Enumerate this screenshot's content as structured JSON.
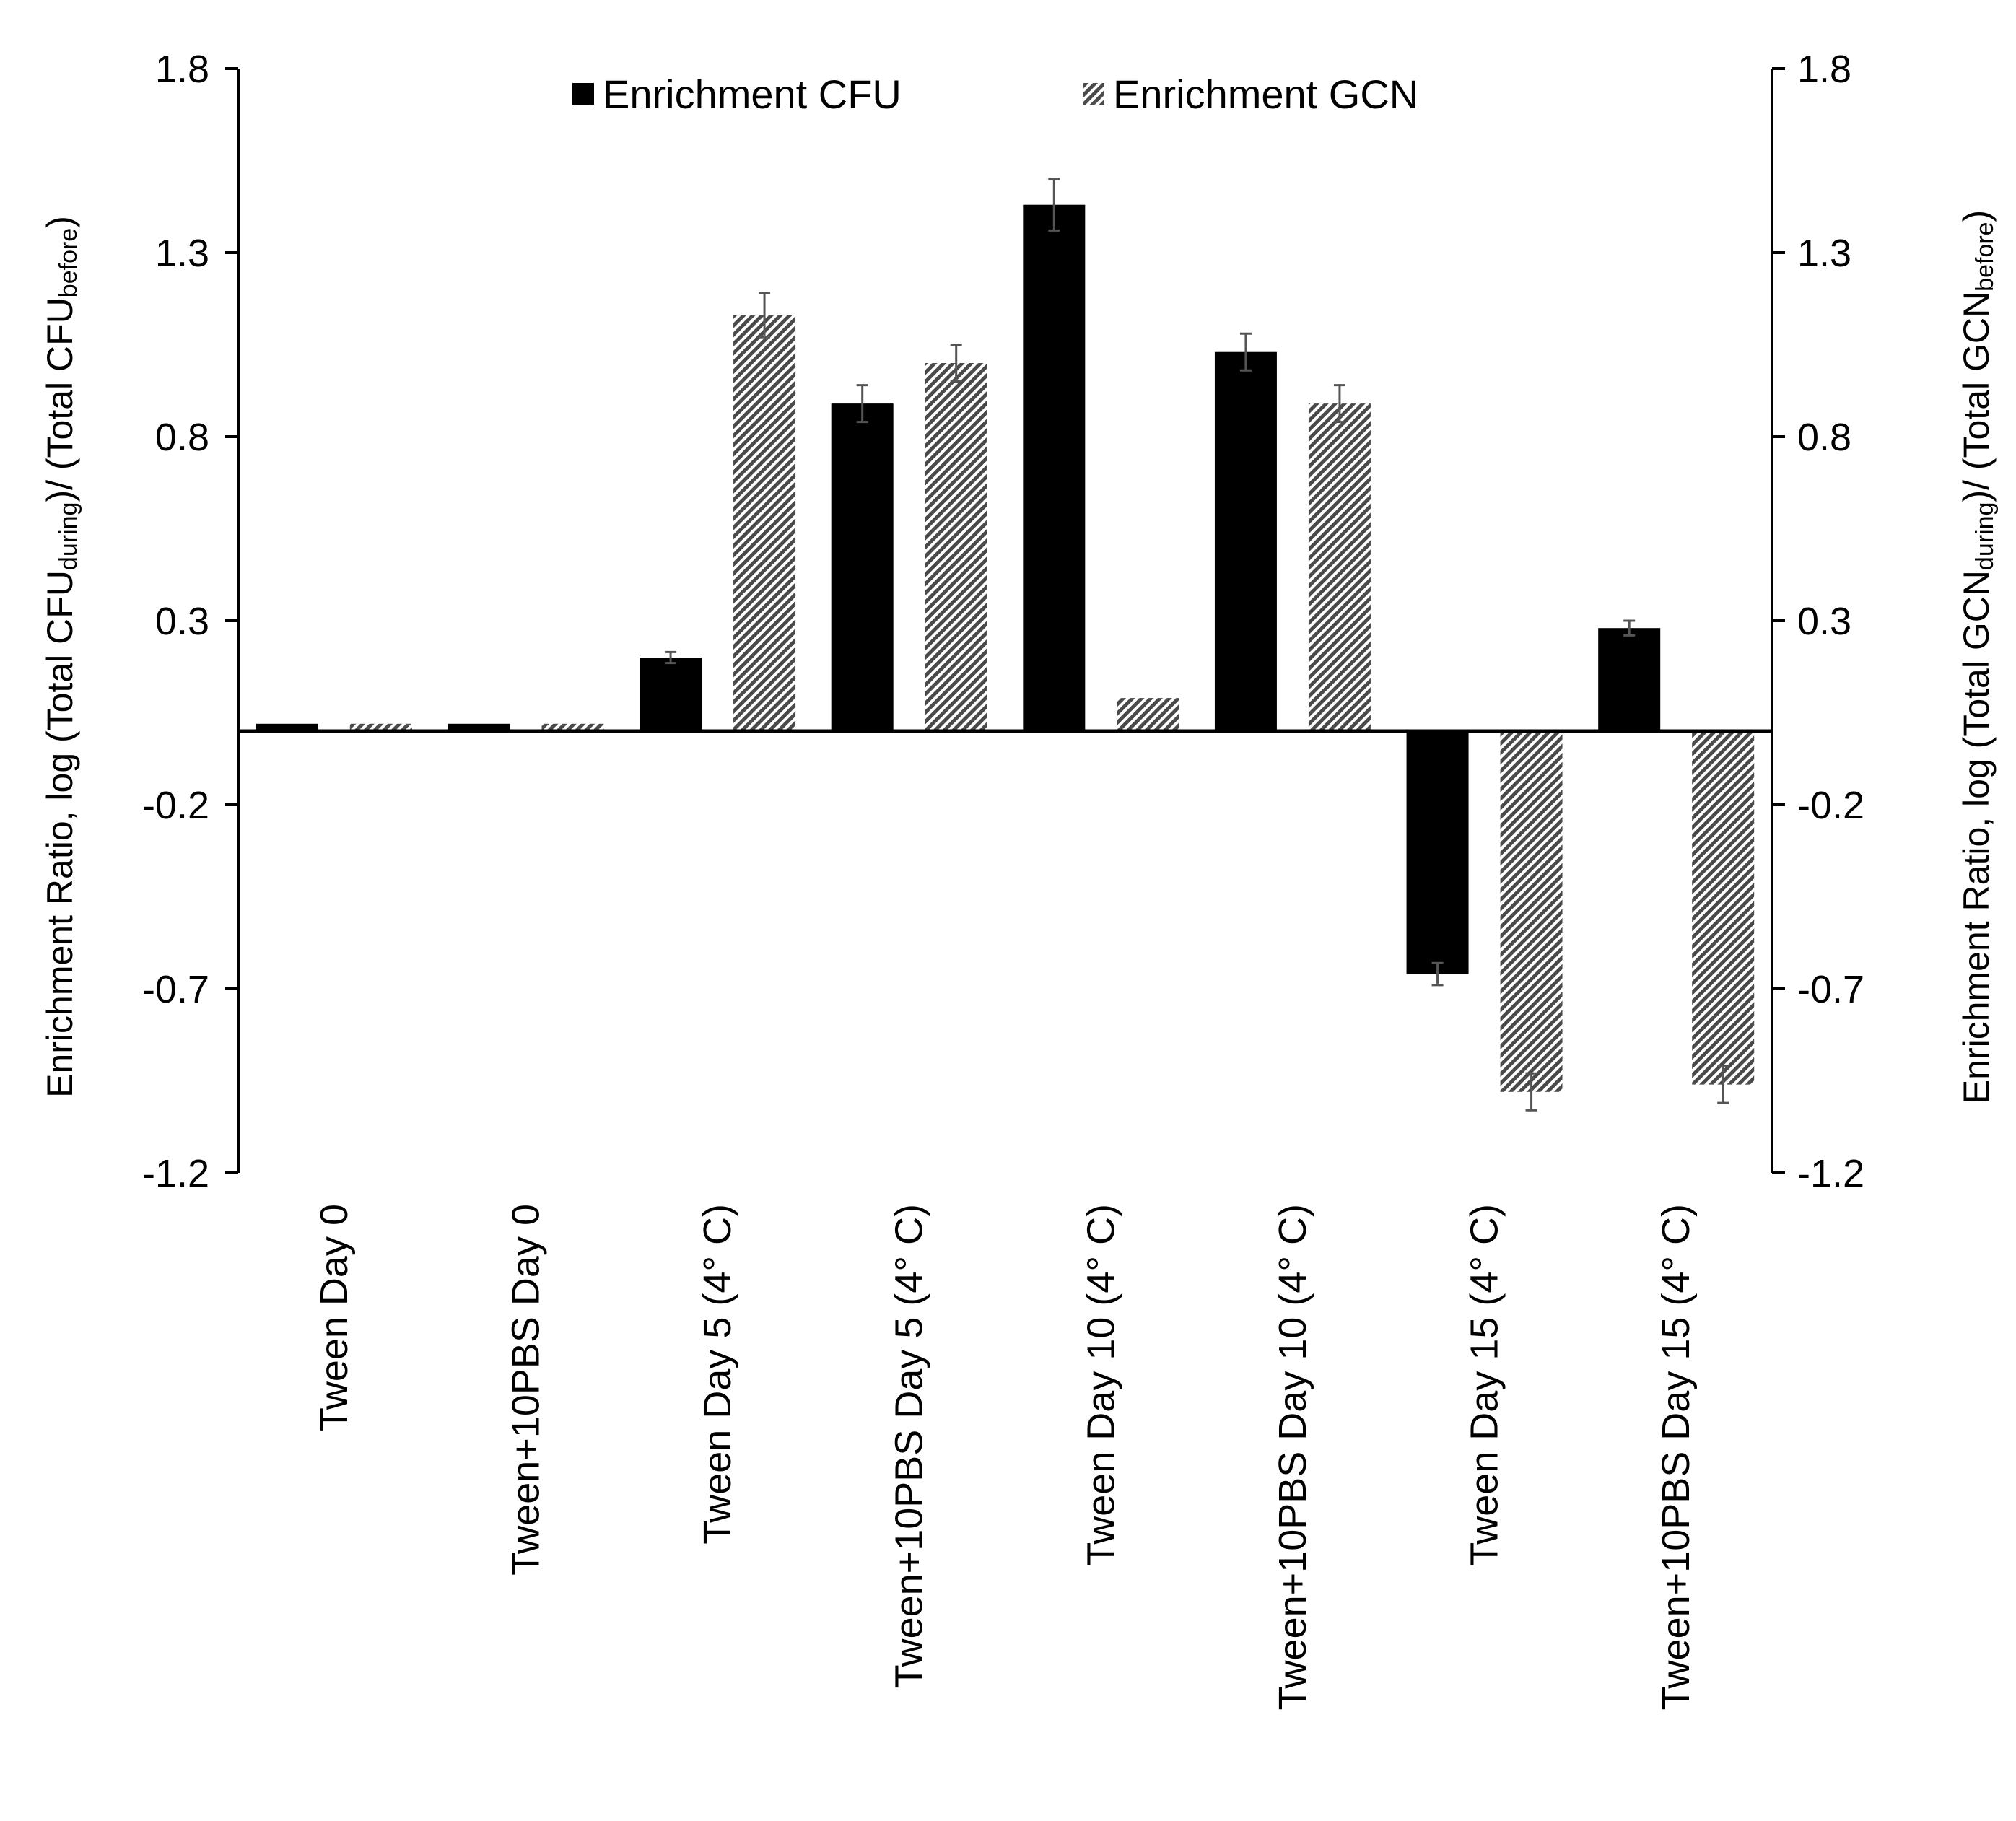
{
  "chart_data": {
    "type": "bar",
    "categories": [
      "Tween Day 0",
      "Tween+10PBS Day 0",
      "Tween Day 5 (4° C)",
      "Tween+10PBS Day 5 (4° C)",
      "Tween Day 10 (4° C)",
      "Tween+10PBS Day 10 (4° C)",
      "Tween Day 15 (4° C)",
      "Tween+10PBS Day 15 (4° C)"
    ],
    "series": [
      {
        "name": "Enrichment CFU",
        "fill": "#000000",
        "values": [
          0.02,
          0.02,
          0.2,
          0.89,
          1.43,
          1.03,
          -0.66,
          0.28
        ],
        "errors": [
          0.0,
          0.0,
          0.015,
          0.05,
          0.07,
          0.05,
          0.03,
          0.02
        ]
      },
      {
        "name": "Enrichment GCN",
        "fill": "#9a9a9a",
        "values": [
          0.02,
          0.02,
          1.13,
          1.0,
          0.09,
          0.89,
          -0.98,
          -0.96
        ],
        "errors": [
          0.0,
          0.0,
          0.06,
          0.05,
          0.0,
          0.05,
          0.05,
          0.05
        ]
      }
    ],
    "ylim": [
      -1.2,
      1.8
    ],
    "yticks": [
      "1.8",
      "1.3",
      "0.8",
      "0.3",
      "-0.2",
      "-0.7",
      "-1.2"
    ],
    "ylabel_left": {
      "main": "Enrichment Ratio, log (Total CFU",
      "sub1": "during",
      "mid": ")/ (Total CFU",
      "sub2": "before",
      "end": ")"
    },
    "ylabel_right": {
      "main": "Enrichment Ratio, log (Total GCN",
      "sub1": "during",
      "mid": ")/ (Total GCN",
      "sub2": "before",
      "end": ")"
    },
    "legend": [
      "Enrichment CFU",
      "Enrichment GCN"
    ],
    "legend_position": "top-center",
    "grid": false
  }
}
